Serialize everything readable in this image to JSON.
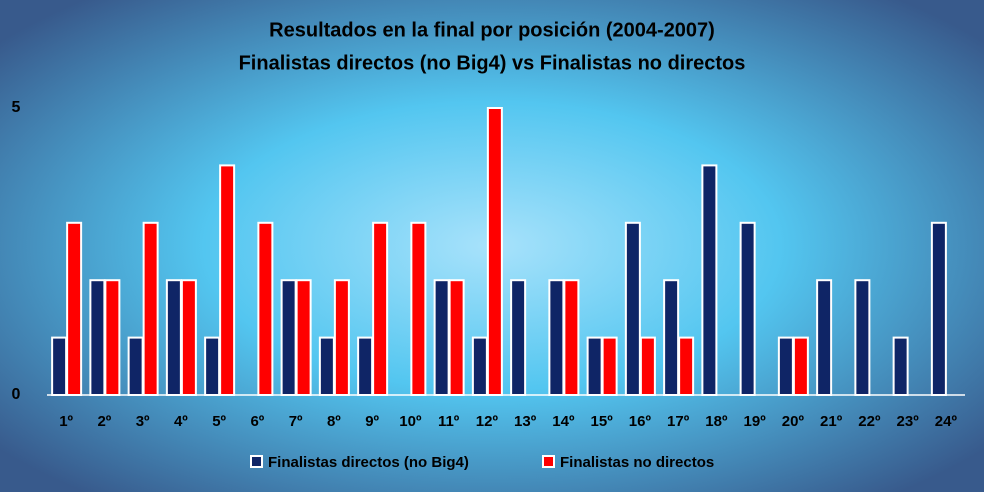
{
  "chart_data": {
    "type": "bar",
    "title": "Resultados en la final por posición (2004-2007)",
    "subtitle": "Finalistas directos (no Big4) vs Finalistas no directos",
    "categories": [
      "1º",
      "2º",
      "3º",
      "4º",
      "5º",
      "6º",
      "7º",
      "8º",
      "9º",
      "10º",
      "11º",
      "12º",
      "13º",
      "14º",
      "15º",
      "16º",
      "17º",
      "18º",
      "19º",
      "20º",
      "21º",
      "22º",
      "23º",
      "24º"
    ],
    "series": [
      {
        "name": "Finalistas directos (no Big4)",
        "color": "#0f2566",
        "values": [
          1,
          2,
          1,
          2,
          1,
          0,
          2,
          1,
          1,
          0,
          2,
          1,
          2,
          2,
          1,
          3,
          2,
          4,
          3,
          1,
          2,
          2,
          1,
          3
        ]
      },
      {
        "name": "Finalistas no directos",
        "color": "#ff0000",
        "values": [
          3,
          2,
          3,
          2,
          4,
          3,
          2,
          2,
          3,
          3,
          2,
          5,
          0,
          2,
          1,
          1,
          1,
          0,
          0,
          1,
          0,
          0,
          0,
          0
        ]
      }
    ],
    "ylim": [
      0,
      5
    ],
    "yticks": [
      0,
      5
    ],
    "grid": false,
    "legend": "bottom"
  }
}
